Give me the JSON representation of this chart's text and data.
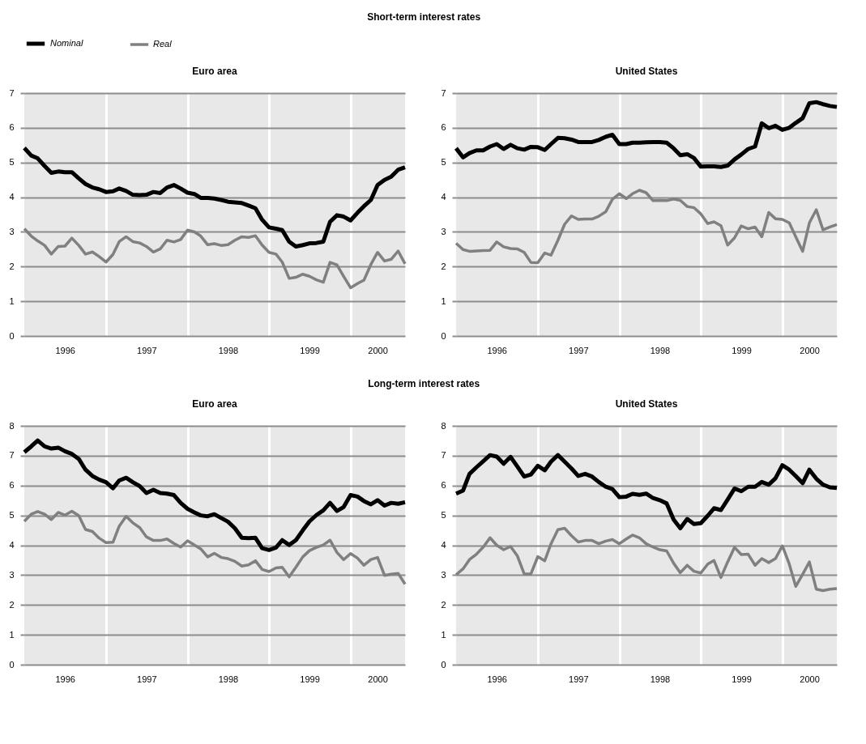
{
  "chart_data": [
    {
      "type": "line",
      "title": "Euro area",
      "annotations": [
        "Short-term interest rates"
      ],
      "legend": "top",
      "grid": true,
      "x": [
        "1996-01",
        "1996-02",
        "1996-03",
        "1996-04",
        "1996-05",
        "1996-06",
        "1996-07",
        "1996-08",
        "1996-09",
        "1996-10",
        "1996-11",
        "1996-12",
        "1997-01",
        "1997-02",
        "1997-03",
        "1997-04",
        "1997-05",
        "1997-06",
        "1997-07",
        "1997-08",
        "1997-09",
        "1997-10",
        "1997-11",
        "1997-12",
        "1998-01",
        "1998-02",
        "1998-03",
        "1998-04",
        "1998-05",
        "1998-06",
        "1998-07",
        "1998-08",
        "1998-09",
        "1998-10",
        "1998-11",
        "1998-12",
        "1999-01",
        "1999-02",
        "1999-03",
        "1999-04",
        "1999-05",
        "1999-06",
        "1999-07",
        "1999-08",
        "1999-09",
        "1999-10",
        "1999-11",
        "1999-12",
        "2000-01",
        "2000-02",
        "2000-03",
        "2000-04",
        "2000-05",
        "2000-06",
        "2000-07",
        "2000-08",
        "2000-09"
      ],
      "xlim": [
        "1996-01",
        "2000-09"
      ],
      "xticks": [
        {
          "value": "1996-07",
          "label": "1996"
        },
        {
          "value": "1997-01",
          "label": null
        },
        {
          "value": "1997-07",
          "label": "1997"
        },
        {
          "value": "1998-01",
          "label": null
        },
        {
          "value": "1998-07",
          "label": "1998"
        },
        {
          "value": "1999-01",
          "label": null
        },
        {
          "value": "1999-07",
          "label": "1999"
        },
        {
          "value": "2000-01",
          "label": null
        },
        {
          "value": "2000-05",
          "label": "2000"
        }
      ],
      "ylim": [
        0,
        7
      ],
      "yticks": [
        0,
        1,
        2,
        3,
        4,
        5,
        6,
        7
      ],
      "series": [
        {
          "name": "Nominal",
          "color": "#000000",
          "values": [
            5.42,
            5.2,
            5.12,
            4.9,
            4.7,
            4.74,
            4.72,
            4.72,
            4.54,
            4.38,
            4.28,
            4.23,
            4.15,
            4.17,
            4.25,
            4.18,
            4.07,
            4.06,
            4.07,
            4.15,
            4.12,
            4.28,
            4.35,
            4.25,
            4.13,
            4.09,
            3.98,
            3.98,
            3.96,
            3.92,
            3.87,
            3.85,
            3.83,
            3.76,
            3.68,
            3.35,
            3.13,
            3.09,
            3.05,
            2.72,
            2.58,
            2.62,
            2.67,
            2.68,
            2.72,
            3.29,
            3.48,
            3.44,
            3.33,
            3.55,
            3.74,
            3.92,
            4.35,
            4.5,
            4.59,
            4.79,
            4.86
          ]
        },
        {
          "name": "Real",
          "color": "#808080",
          "values": [
            3.09,
            2.88,
            2.74,
            2.61,
            2.36,
            2.58,
            2.59,
            2.82,
            2.61,
            2.36,
            2.42,
            2.29,
            2.13,
            2.35,
            2.72,
            2.86,
            2.72,
            2.68,
            2.58,
            2.42,
            2.51,
            2.76,
            2.71,
            2.78,
            3.05,
            3.0,
            2.88,
            2.63,
            2.66,
            2.61,
            2.63,
            2.76,
            2.86,
            2.84,
            2.89,
            2.62,
            2.41,
            2.36,
            2.13,
            1.66,
            1.69,
            1.78,
            1.72,
            1.62,
            1.55,
            2.12,
            2.05,
            1.72,
            1.39,
            1.51,
            1.61,
            2.06,
            2.41,
            2.16,
            2.21,
            2.45,
            2.08
          ]
        }
      ]
    },
    {
      "type": "line",
      "title": "United States",
      "legend": "top",
      "grid": true,
      "x": [
        "1996-01",
        "1996-02",
        "1996-03",
        "1996-04",
        "1996-05",
        "1996-06",
        "1996-07",
        "1996-08",
        "1996-09",
        "1996-10",
        "1996-11",
        "1996-12",
        "1997-01",
        "1997-02",
        "1997-03",
        "1997-04",
        "1997-05",
        "1997-06",
        "1997-07",
        "1997-08",
        "1997-09",
        "1997-10",
        "1997-11",
        "1997-12",
        "1998-01",
        "1998-02",
        "1998-03",
        "1998-04",
        "1998-05",
        "1998-06",
        "1998-07",
        "1998-08",
        "1998-09",
        "1998-10",
        "1998-11",
        "1998-12",
        "1999-01",
        "1999-02",
        "1999-03",
        "1999-04",
        "1999-05",
        "1999-06",
        "1999-07",
        "1999-08",
        "1999-09",
        "1999-10",
        "1999-11",
        "1999-12",
        "2000-01",
        "2000-02",
        "2000-03",
        "2000-04",
        "2000-05",
        "2000-06",
        "2000-07",
        "2000-08",
        "2000-09"
      ],
      "xlim": [
        "1996-01",
        "2000-09"
      ],
      "xticks": [
        {
          "value": "1996-07",
          "label": "1996"
        },
        {
          "value": "1997-01",
          "label": null
        },
        {
          "value": "1997-07",
          "label": "1997"
        },
        {
          "value": "1998-01",
          "label": null
        },
        {
          "value": "1998-07",
          "label": "1998"
        },
        {
          "value": "1999-01",
          "label": null
        },
        {
          "value": "1999-07",
          "label": "1999"
        },
        {
          "value": "2000-01",
          "label": null
        },
        {
          "value": "2000-05",
          "label": "2000"
        }
      ],
      "ylim": [
        0,
        7
      ],
      "yticks": [
        0,
        1,
        2,
        3,
        4,
        5,
        6,
        7
      ],
      "series": [
        {
          "name": "Nominal",
          "color": "#000000",
          "values": [
            5.41,
            5.15,
            5.27,
            5.35,
            5.35,
            5.46,
            5.53,
            5.39,
            5.51,
            5.41,
            5.37,
            5.45,
            5.44,
            5.36,
            5.53,
            5.71,
            5.7,
            5.66,
            5.59,
            5.59,
            5.59,
            5.65,
            5.74,
            5.8,
            5.53,
            5.53,
            5.57,
            5.57,
            5.58,
            5.59,
            5.59,
            5.57,
            5.41,
            5.21,
            5.24,
            5.13,
            4.88,
            4.89,
            4.89,
            4.87,
            4.91,
            5.09,
            5.23,
            5.39,
            5.46,
            6.13,
            5.99,
            6.06,
            5.94,
            6.0,
            6.14,
            6.28,
            6.71,
            6.74,
            6.68,
            6.63,
            6.6
          ]
        },
        {
          "name": "Real",
          "color": "#808080",
          "values": [
            2.67,
            2.49,
            2.44,
            2.45,
            2.46,
            2.47,
            2.71,
            2.57,
            2.52,
            2.51,
            2.41,
            2.12,
            2.11,
            2.39,
            2.33,
            2.76,
            3.22,
            3.46,
            3.36,
            3.37,
            3.37,
            3.45,
            3.58,
            3.94,
            4.1,
            3.96,
            4.1,
            4.2,
            4.13,
            3.9,
            3.91,
            3.9,
            3.95,
            3.91,
            3.73,
            3.7,
            3.52,
            3.24,
            3.29,
            3.18,
            2.62,
            2.83,
            3.17,
            3.09,
            3.14,
            2.86,
            3.56,
            3.38,
            3.36,
            3.26,
            2.86,
            2.44,
            3.26,
            3.64,
            3.06,
            3.14,
            3.21
          ]
        }
      ]
    },
    {
      "type": "line",
      "title": "Euro area",
      "annotations": [
        "Long-term interest rates"
      ],
      "grid": true,
      "x": [
        "1996-01",
        "1996-02",
        "1996-03",
        "1996-04",
        "1996-05",
        "1996-06",
        "1996-07",
        "1996-08",
        "1996-09",
        "1996-10",
        "1996-11",
        "1996-12",
        "1997-01",
        "1997-02",
        "1997-03",
        "1997-04",
        "1997-05",
        "1997-06",
        "1997-07",
        "1997-08",
        "1997-09",
        "1997-10",
        "1997-11",
        "1997-12",
        "1998-01",
        "1998-02",
        "1998-03",
        "1998-04",
        "1998-05",
        "1998-06",
        "1998-07",
        "1998-08",
        "1998-09",
        "1998-10",
        "1998-11",
        "1998-12",
        "1999-01",
        "1999-02",
        "1999-03",
        "1999-04",
        "1999-05",
        "1999-06",
        "1999-07",
        "1999-08",
        "1999-09",
        "1999-10",
        "1999-11",
        "1999-12",
        "2000-01",
        "2000-02",
        "2000-03",
        "2000-04",
        "2000-05",
        "2000-06",
        "2000-07",
        "2000-08",
        "2000-09"
      ],
      "xlim": [
        "1996-01",
        "2000-09"
      ],
      "xticks": [
        {
          "value": "1996-07",
          "label": "1996"
        },
        {
          "value": "1997-01",
          "label": null
        },
        {
          "value": "1997-07",
          "label": "1997"
        },
        {
          "value": "1998-01",
          "label": null
        },
        {
          "value": "1998-07",
          "label": "1998"
        },
        {
          "value": "1999-01",
          "label": null
        },
        {
          "value": "1999-07",
          "label": "1999"
        },
        {
          "value": "2000-01",
          "label": null
        },
        {
          "value": "2000-05",
          "label": "2000"
        }
      ],
      "ylim": [
        0,
        8
      ],
      "yticks": [
        0,
        1,
        2,
        3,
        4,
        5,
        6,
        7,
        8
      ],
      "series": [
        {
          "color": "#000000",
          "values": [
            7.12,
            7.31,
            7.51,
            7.31,
            7.24,
            7.27,
            7.15,
            7.06,
            6.89,
            6.53,
            6.32,
            6.2,
            6.11,
            5.91,
            6.17,
            6.26,
            6.11,
            5.98,
            5.75,
            5.86,
            5.75,
            5.73,
            5.68,
            5.42,
            5.22,
            5.1,
            5.0,
            4.97,
            5.04,
            4.91,
            4.79,
            4.57,
            4.25,
            4.24,
            4.25,
            3.9,
            3.84,
            3.92,
            4.17,
            4.01,
            4.17,
            4.5,
            4.8,
            5.01,
            5.17,
            5.42,
            5.15,
            5.28,
            5.68,
            5.63,
            5.48,
            5.37,
            5.51,
            5.33,
            5.42,
            5.39,
            5.44
          ]
        },
        {
          "color": "#808080",
          "values": [
            4.8,
            5.04,
            5.13,
            5.04,
            4.86,
            5.1,
            5.01,
            5.14,
            4.99,
            4.53,
            4.46,
            4.24,
            4.09,
            4.1,
            4.64,
            4.97,
            4.75,
            4.59,
            4.28,
            4.16,
            4.16,
            4.21,
            4.06,
            3.94,
            4.15,
            4.01,
            3.88,
            3.61,
            3.73,
            3.59,
            3.55,
            3.46,
            3.3,
            3.34,
            3.48,
            3.19,
            3.12,
            3.24,
            3.26,
            2.94,
            3.26,
            3.61,
            3.82,
            3.93,
            4.01,
            4.17,
            3.76,
            3.52,
            3.72,
            3.57,
            3.33,
            3.52,
            3.59,
            2.99,
            3.03,
            3.06,
            2.7
          ]
        }
      ]
    },
    {
      "type": "line",
      "title": "United States",
      "grid": true,
      "x": [
        "1996-01",
        "1996-02",
        "1996-03",
        "1996-04",
        "1996-05",
        "1996-06",
        "1996-07",
        "1996-08",
        "1996-09",
        "1996-10",
        "1996-11",
        "1996-12",
        "1997-01",
        "1997-02",
        "1997-03",
        "1997-04",
        "1997-05",
        "1997-06",
        "1997-07",
        "1997-08",
        "1997-09",
        "1997-10",
        "1997-11",
        "1997-12",
        "1998-01",
        "1998-02",
        "1998-03",
        "1998-04",
        "1998-05",
        "1998-06",
        "1998-07",
        "1998-08",
        "1998-09",
        "1998-10",
        "1998-11",
        "1998-12",
        "1999-01",
        "1999-02",
        "1999-03",
        "1999-04",
        "1999-05",
        "1999-06",
        "1999-07",
        "1999-08",
        "1999-09",
        "1999-10",
        "1999-11",
        "1999-12",
        "2000-01",
        "2000-02",
        "2000-03",
        "2000-04",
        "2000-05",
        "2000-06",
        "2000-07",
        "2000-08",
        "2000-09"
      ],
      "xlim": [
        "1996-01",
        "2000-09"
      ],
      "xticks": [
        {
          "value": "1996-07",
          "label": "1996"
        },
        {
          "value": "1997-01",
          "label": null
        },
        {
          "value": "1997-07",
          "label": "1997"
        },
        {
          "value": "1998-01",
          "label": null
        },
        {
          "value": "1998-07",
          "label": "1998"
        },
        {
          "value": "1999-01",
          "label": null
        },
        {
          "value": "1999-07",
          "label": "1999"
        },
        {
          "value": "2000-01",
          "label": null
        },
        {
          "value": "2000-05",
          "label": "2000"
        }
      ],
      "ylim": [
        0,
        8
      ],
      "yticks": [
        0,
        1,
        2,
        3,
        4,
        5,
        6,
        7,
        8
      ],
      "series": [
        {
          "color": "#000000",
          "values": [
            5.73,
            5.83,
            6.39,
            6.61,
            6.81,
            7.02,
            6.97,
            6.73,
            6.96,
            6.64,
            6.3,
            6.37,
            6.66,
            6.51,
            6.8,
            7.02,
            6.8,
            6.57,
            6.32,
            6.39,
            6.3,
            6.12,
            5.96,
            5.88,
            5.61,
            5.63,
            5.72,
            5.69,
            5.73,
            5.58,
            5.51,
            5.4,
            4.86,
            4.57,
            4.88,
            4.71,
            4.74,
            4.99,
            5.24,
            5.18,
            5.53,
            5.9,
            5.81,
            5.96,
            5.96,
            6.12,
            6.03,
            6.24,
            6.68,
            6.53,
            6.32,
            6.08,
            6.53,
            6.23,
            6.03,
            5.94,
            5.92
          ]
        },
        {
          "color": "#808080",
          "values": [
            3.01,
            3.21,
            3.52,
            3.7,
            3.93,
            4.25,
            4.0,
            3.85,
            3.96,
            3.65,
            3.04,
            3.04,
            3.62,
            3.48,
            4.05,
            4.52,
            4.57,
            4.32,
            4.11,
            4.16,
            4.16,
            4.05,
            4.14,
            4.19,
            4.05,
            4.21,
            4.34,
            4.25,
            4.05,
            3.94,
            3.85,
            3.81,
            3.4,
            3.08,
            3.33,
            3.13,
            3.07,
            3.37,
            3.49,
            2.92,
            3.44,
            3.93,
            3.69,
            3.7,
            3.33,
            3.55,
            3.42,
            3.55,
            3.98,
            3.37,
            2.62,
            3.03,
            3.44,
            2.53,
            2.48,
            2.53,
            2.55
          ]
        }
      ]
    }
  ]
}
